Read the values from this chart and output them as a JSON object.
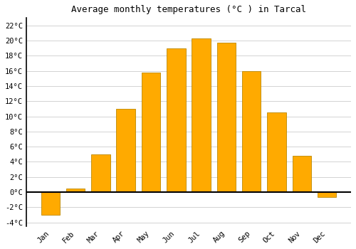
{
  "months": [
    "Jan",
    "Feb",
    "Mar",
    "Apr",
    "May",
    "Jun",
    "Jul",
    "Aug",
    "Sep",
    "Oct",
    "Nov",
    "Dec"
  ],
  "temperatures": [
    -3.0,
    0.5,
    5.0,
    11.0,
    15.8,
    19.0,
    20.3,
    19.7,
    16.0,
    10.5,
    4.8,
    -0.7
  ],
  "bar_color": "#FFAA00",
  "bar_edge_color": "#BB8800",
  "title": "Average monthly temperatures (°C ) in Tarcal",
  "ylim": [
    -4.5,
    23
  ],
  "yticks": [
    -4,
    -2,
    0,
    2,
    4,
    6,
    8,
    10,
    12,
    14,
    16,
    18,
    20,
    22
  ],
  "background_color": "#ffffff",
  "plot_bg_color": "#ffffff",
  "grid_color": "#cccccc",
  "title_fontsize": 9,
  "tick_fontsize": 7.5,
  "zero_line_color": "#000000",
  "bar_width": 0.75
}
